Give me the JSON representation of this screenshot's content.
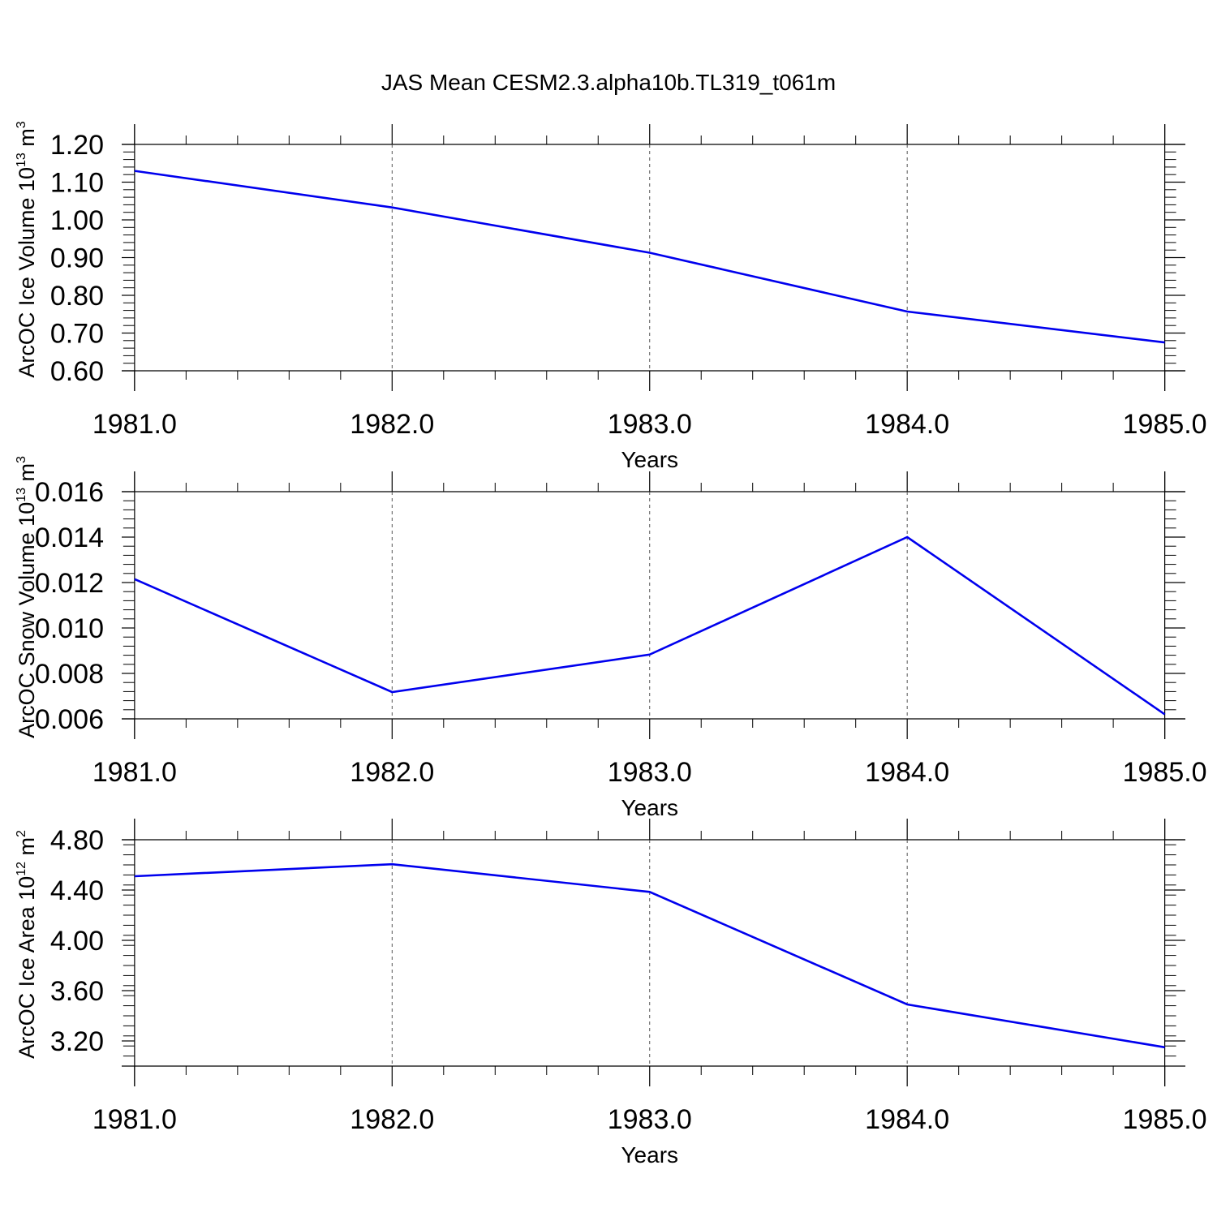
{
  "figure": {
    "title": "JAS Mean CESM2.3.alpha10b.TL319_t061m"
  },
  "chart_data": [
    {
      "type": "line",
      "title": "",
      "xlabel": "Years",
      "ylabel": "ArcOC Ice Volume 10",
      "ylabel_exponent": "13",
      "ylabel_unit": " m",
      "ylabel_unit_exponent": "3",
      "x": [
        1981,
        1982,
        1983,
        1984,
        1985
      ],
      "series": [
        {
          "values": [
            1.13,
            1.033,
            0.913,
            0.757,
            0.675
          ],
          "color": "#0000ee"
        }
      ],
      "xlim": [
        1980.95,
        1985.08
      ],
      "ylim": [
        0.6,
        1.2
      ],
      "xticks": [
        1981,
        1982,
        1983,
        1984,
        1985
      ],
      "xtick_labels": [
        "1981.0",
        "1982.0",
        "1983.0",
        "1984.0",
        "1985.0"
      ],
      "yticks": [
        0.6,
        0.7,
        0.8,
        0.9,
        1.0,
        1.1,
        1.2
      ],
      "ytick_labels": [
        "0.60",
        "0.70",
        "0.80",
        "0.90",
        "1.00",
        "1.10",
        "1.20"
      ],
      "yminor_step": 0.02,
      "grid": "x-dashed"
    },
    {
      "type": "line",
      "title": "",
      "xlabel": "Years",
      "ylabel": "ArcOC Snow Volume 10",
      "ylabel_exponent": "13",
      "ylabel_unit": " m",
      "ylabel_unit_exponent": "3",
      "x": [
        1981,
        1982,
        1983,
        1984,
        1985
      ],
      "series": [
        {
          "values": [
            0.01215,
            0.00718,
            0.00883,
            0.014,
            0.0062
          ],
          "color": "#0000ee"
        }
      ],
      "xlim": [
        1980.95,
        1985.08
      ],
      "ylim": [
        0.006,
        0.016
      ],
      "xticks": [
        1981,
        1982,
        1983,
        1984,
        1985
      ],
      "xtick_labels": [
        "1981.0",
        "1982.0",
        "1983.0",
        "1984.0",
        "1985.0"
      ],
      "yticks": [
        0.006,
        0.008,
        0.01,
        0.012,
        0.014,
        0.016
      ],
      "ytick_labels": [
        "0.006",
        "0.008",
        "0.010",
        "0.012",
        "0.014",
        "0.016"
      ],
      "yminor_step": 0.0004,
      "grid": "x-dashed"
    },
    {
      "type": "line",
      "title": "",
      "xlabel": "Years",
      "ylabel": "ArcOC Ice Area 10",
      "ylabel_exponent": "12",
      "ylabel_unit": " m",
      "ylabel_unit_exponent": "2",
      "x": [
        1981,
        1982,
        1983,
        1984,
        1985
      ],
      "series": [
        {
          "values": [
            4.51,
            4.605,
            4.385,
            3.49,
            3.15
          ],
          "color": "#0000ee"
        }
      ],
      "xlim": [
        1980.95,
        1985.08
      ],
      "ylim": [
        3.0,
        4.8
      ],
      "xticks": [
        1981,
        1982,
        1983,
        1984,
        1985
      ],
      "xtick_labels": [
        "1981.0",
        "1982.0",
        "1983.0",
        "1984.0",
        "1985.0"
      ],
      "yticks": [
        3.2,
        3.6,
        4.0,
        4.4,
        4.8
      ],
      "ytick_labels": [
        "3.20",
        "3.60",
        "4.00",
        "4.40",
        "4.80"
      ],
      "yminor_step": 0.08,
      "grid": "x-dashed"
    }
  ]
}
